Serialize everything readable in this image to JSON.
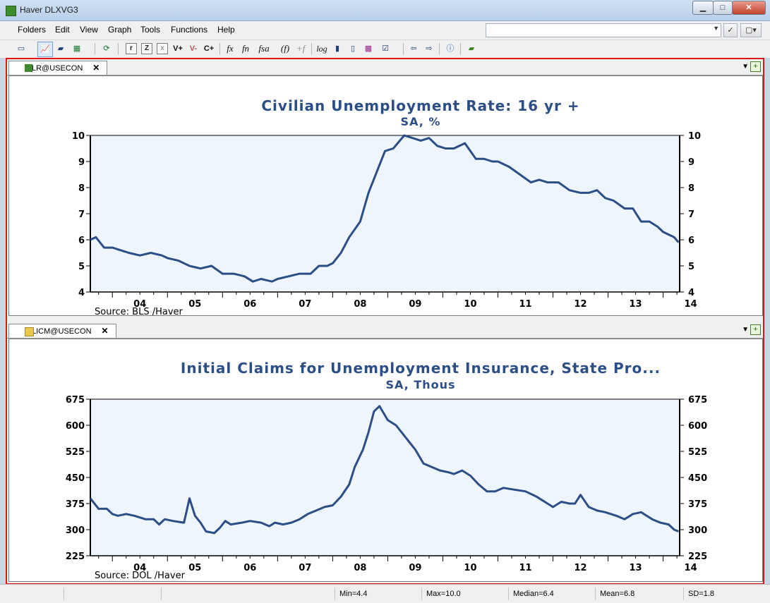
{
  "window": {
    "title": "Haver DLXVG3",
    "minimize": "▁",
    "maximize": "□",
    "close": "✕"
  },
  "menu": [
    "Folders",
    "Edit",
    "View",
    "Graph",
    "Tools",
    "Functions",
    "Help"
  ],
  "toolbar": {
    "r": "r",
    "z": "Z",
    "x": "x",
    "vplus": "V+",
    "vminus": "V-",
    "cplus": "C+",
    "fx": "fx",
    "fn": "fn",
    "fsa": "fsa",
    "pf": "(f)",
    "tf": "+f",
    "log": "log"
  },
  "tabs": [
    {
      "label": "LR@USECON",
      "close": "✕"
    },
    {
      "label": "LICM@USECON",
      "close": "✕"
    }
  ],
  "status": {
    "min": "Min=4.4",
    "max": "Max=10.0",
    "median": "Median=6.4",
    "mean": "Mean=6.8",
    "sd": "SD=1.8"
  },
  "chart_data": [
    {
      "type": "line",
      "title": "Civilian Unemployment Rate: 16 yr +",
      "subtitle": "SA, %",
      "source": "Source:  BLS /Haver",
      "ylim": [
        4,
        10
      ],
      "yticks": [
        4,
        5,
        6,
        7,
        8,
        9,
        10
      ],
      "xticks": [
        "04",
        "05",
        "06",
        "07",
        "08",
        "09",
        "10",
        "11",
        "12",
        "13",
        "14"
      ],
      "xrange": [
        2003.6,
        2014.3
      ],
      "color": "#2b4e86",
      "series": [
        {
          "x": [
            2003.6,
            2003.7,
            2003.85,
            2004.0,
            2004.15,
            2004.3,
            2004.5,
            2004.7,
            2004.9,
            2005.0,
            2005.2,
            2005.4,
            2005.6,
            2005.8,
            2006.0,
            2006.2,
            2006.4,
            2006.55,
            2006.7,
            2006.9,
            2007.0,
            2007.2,
            2007.4,
            2007.6,
            2007.75,
            2007.9,
            2008.0,
            2008.15,
            2008.3,
            2008.5,
            2008.65,
            2008.8,
            2008.95,
            2009.1,
            2009.3,
            2009.45,
            2009.6,
            2009.75,
            2009.9,
            2010.05,
            2010.2,
            2010.4,
            2010.6,
            2010.75,
            2010.9,
            2011.0,
            2011.2,
            2011.4,
            2011.6,
            2011.75,
            2011.9,
            2012.1,
            2012.3,
            2012.5,
            2012.65,
            2012.8,
            2012.95,
            2013.1,
            2013.3,
            2013.45,
            2013.6,
            2013.75,
            2013.9,
            2014.0,
            2014.1,
            2014.2,
            2014.28
          ],
          "values": [
            6.0,
            6.1,
            5.7,
            5.7,
            5.6,
            5.5,
            5.4,
            5.5,
            5.4,
            5.3,
            5.2,
            5.0,
            4.9,
            5.0,
            4.7,
            4.7,
            4.6,
            4.4,
            4.5,
            4.4,
            4.5,
            4.6,
            4.7,
            4.7,
            5.0,
            5.0,
            5.1,
            5.5,
            6.1,
            6.7,
            7.8,
            8.6,
            9.4,
            9.5,
            10.0,
            9.9,
            9.8,
            9.9,
            9.6,
            9.5,
            9.5,
            9.7,
            9.1,
            9.1,
            9.0,
            9.0,
            8.8,
            8.5,
            8.2,
            8.3,
            8.2,
            8.2,
            7.9,
            7.8,
            7.8,
            7.9,
            7.6,
            7.5,
            7.2,
            7.2,
            6.7,
            6.7,
            6.5,
            6.3,
            6.2,
            6.1,
            5.9
          ]
        }
      ]
    },
    {
      "type": "line",
      "title": "Initial Claims for Unemployment Insurance, State Pro...",
      "subtitle": "SA, Thous",
      "source": "Source:  DOL /Haver",
      "ylim": [
        225,
        675
      ],
      "yticks": [
        225,
        300,
        375,
        450,
        525,
        600,
        675
      ],
      "xticks": [
        "04",
        "05",
        "06",
        "07",
        "08",
        "09",
        "10",
        "11",
        "12",
        "13",
        "14"
      ],
      "xrange": [
        2003.6,
        2014.3
      ],
      "color": "#2b4e86",
      "series": [
        {
          "x": [
            2003.6,
            2003.75,
            2003.9,
            2004.0,
            2004.1,
            2004.25,
            2004.4,
            2004.6,
            2004.75,
            2004.85,
            2004.95,
            2005.1,
            2005.3,
            2005.4,
            2005.5,
            2005.6,
            2005.7,
            2005.85,
            2005.95,
            2006.05,
            2006.15,
            2006.35,
            2006.5,
            2006.7,
            2006.85,
            2006.95,
            2007.1,
            2007.25,
            2007.4,
            2007.55,
            2007.7,
            2007.85,
            2008.0,
            2008.15,
            2008.3,
            2008.4,
            2008.55,
            2008.65,
            2008.75,
            2008.85,
            2009.0,
            2009.15,
            2009.35,
            2009.5,
            2009.65,
            2009.8,
            2009.95,
            2010.1,
            2010.2,
            2010.35,
            2010.5,
            2010.65,
            2010.8,
            2010.95,
            2011.1,
            2011.3,
            2011.5,
            2011.7,
            2011.85,
            2012.0,
            2012.15,
            2012.3,
            2012.4,
            2012.5,
            2012.65,
            2012.8,
            2012.95,
            2013.15,
            2013.3,
            2013.45,
            2013.6,
            2013.8,
            2013.95,
            2014.1,
            2014.2,
            2014.28
          ],
          "values": [
            390,
            360,
            360,
            345,
            340,
            345,
            340,
            330,
            330,
            315,
            330,
            325,
            320,
            390,
            340,
            320,
            295,
            290,
            305,
            325,
            315,
            320,
            325,
            320,
            310,
            320,
            315,
            320,
            330,
            345,
            355,
            365,
            370,
            395,
            430,
            480,
            530,
            580,
            640,
            655,
            615,
            600,
            560,
            530,
            490,
            480,
            470,
            465,
            460,
            470,
            455,
            430,
            410,
            410,
            420,
            415,
            410,
            395,
            380,
            365,
            380,
            375,
            375,
            400,
            365,
            355,
            350,
            340,
            330,
            345,
            350,
            330,
            320,
            315,
            300,
            295
          ]
        }
      ]
    }
  ]
}
